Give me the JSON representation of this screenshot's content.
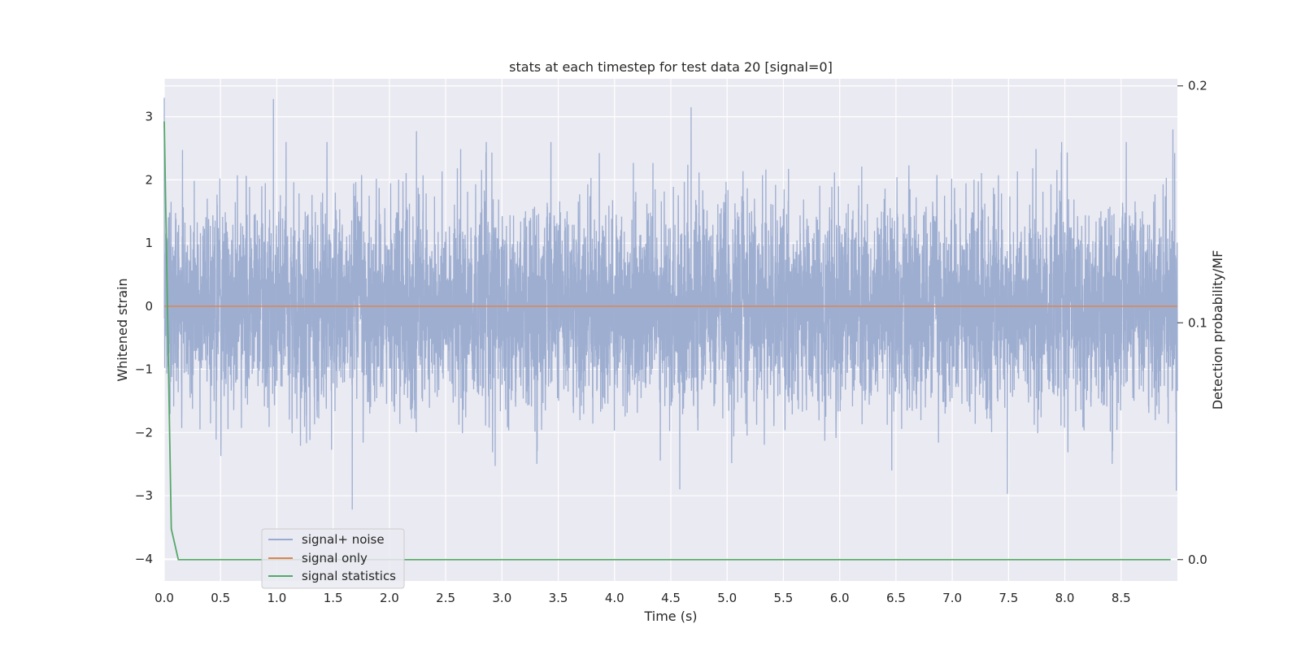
{
  "chart_data": {
    "type": "line",
    "title": "stats at each timestep for test data 20 [signal=0]",
    "xlabel": "Time (s)",
    "ylabel": "Whitened strain",
    "y2label": "Detection probability/MF",
    "xlim": [
      0.0,
      9.0
    ],
    "ylim": [
      -4.35,
      3.6
    ],
    "y2lim": [
      -0.009,
      0.203
    ],
    "xticks": [
      "0.0",
      "0.5",
      "1.0",
      "1.5",
      "2.0",
      "2.5",
      "3.0",
      "3.5",
      "4.0",
      "4.5",
      "5.0",
      "5.5",
      "6.0",
      "6.5",
      "7.0",
      "7.5",
      "8.0",
      "8.5"
    ],
    "yticks": [
      "3",
      "2",
      "1",
      "0",
      "−1",
      "−2",
      "−3",
      "−4"
    ],
    "y2ticks": [
      "0.2",
      "0.1",
      "0.0"
    ],
    "grid": true,
    "legend_position": "lower-left",
    "series": [
      {
        "name": "signal+ noise",
        "color": "#9aabcf",
        "axis": "left",
        "sample_rate_hz": 2048,
        "approx_std": 0.75,
        "peaks": [
          {
            "x": 0.0,
            "y": 3.3
          },
          {
            "x": 0.97,
            "y": 3.28
          },
          {
            "x": 1.67,
            "y": -3.22
          },
          {
            "x": 4.68,
            "y": 3.15
          },
          {
            "x": 4.58,
            "y": -2.9
          },
          {
            "x": 7.49,
            "y": -2.97
          },
          {
            "x": 8.96,
            "y": 2.8
          },
          {
            "x": 8.99,
            "y": -2.92
          },
          {
            "x": 2.24,
            "y": 2.77
          },
          {
            "x": 2.94,
            "y": -2.53
          }
        ]
      },
      {
        "name": "signal only",
        "color": "#dd8452",
        "axis": "left",
        "x": [
          0.0,
          9.0
        ],
        "y": [
          0.0,
          0.0
        ]
      },
      {
        "name": "signal statistics",
        "color": "#55a868",
        "axis": "right",
        "x": [
          0.0,
          0.0625,
          0.125,
          0.25,
          1.0,
          2.0,
          3.0,
          4.0,
          5.0,
          6.0,
          7.0,
          8.0,
          8.94
        ],
        "y": [
          0.185,
          0.013,
          0.0,
          0.0,
          0.0,
          0.0,
          0.0,
          0.0,
          0.0,
          0.0,
          0.0,
          0.0,
          0.0
        ]
      }
    ]
  }
}
